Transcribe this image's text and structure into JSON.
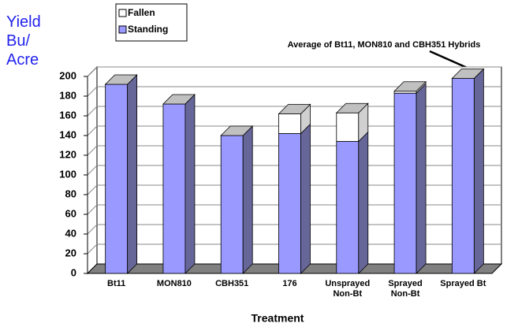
{
  "chart_data": {
    "type": "bar",
    "stacked": true,
    "y_label": "Yield Bu/ Acre",
    "x_label": "Treatment",
    "annotation": "Average of Bt11, MON810 and CBH351 Hybrids",
    "categories": [
      "Bt11",
      "MON810",
      "CBH351",
      "176",
      "Unsprayed Non-Bt",
      "Sprayed Non-Bt",
      "Sprayed Bt"
    ],
    "series": [
      {
        "name": "Fallen",
        "color": "#ffffff",
        "values": [
          0,
          0,
          0,
          20,
          29,
          2,
          0
        ]
      },
      {
        "name": "Standing",
        "color": "#9999ff",
        "values": [
          192,
          172,
          140,
          142,
          134,
          183,
          198
        ]
      }
    ],
    "ylim": [
      0,
      200
    ],
    "yticks": [
      0,
      20,
      40,
      60,
      80,
      100,
      120,
      140,
      160,
      180,
      200
    ],
    "grid": true
  }
}
